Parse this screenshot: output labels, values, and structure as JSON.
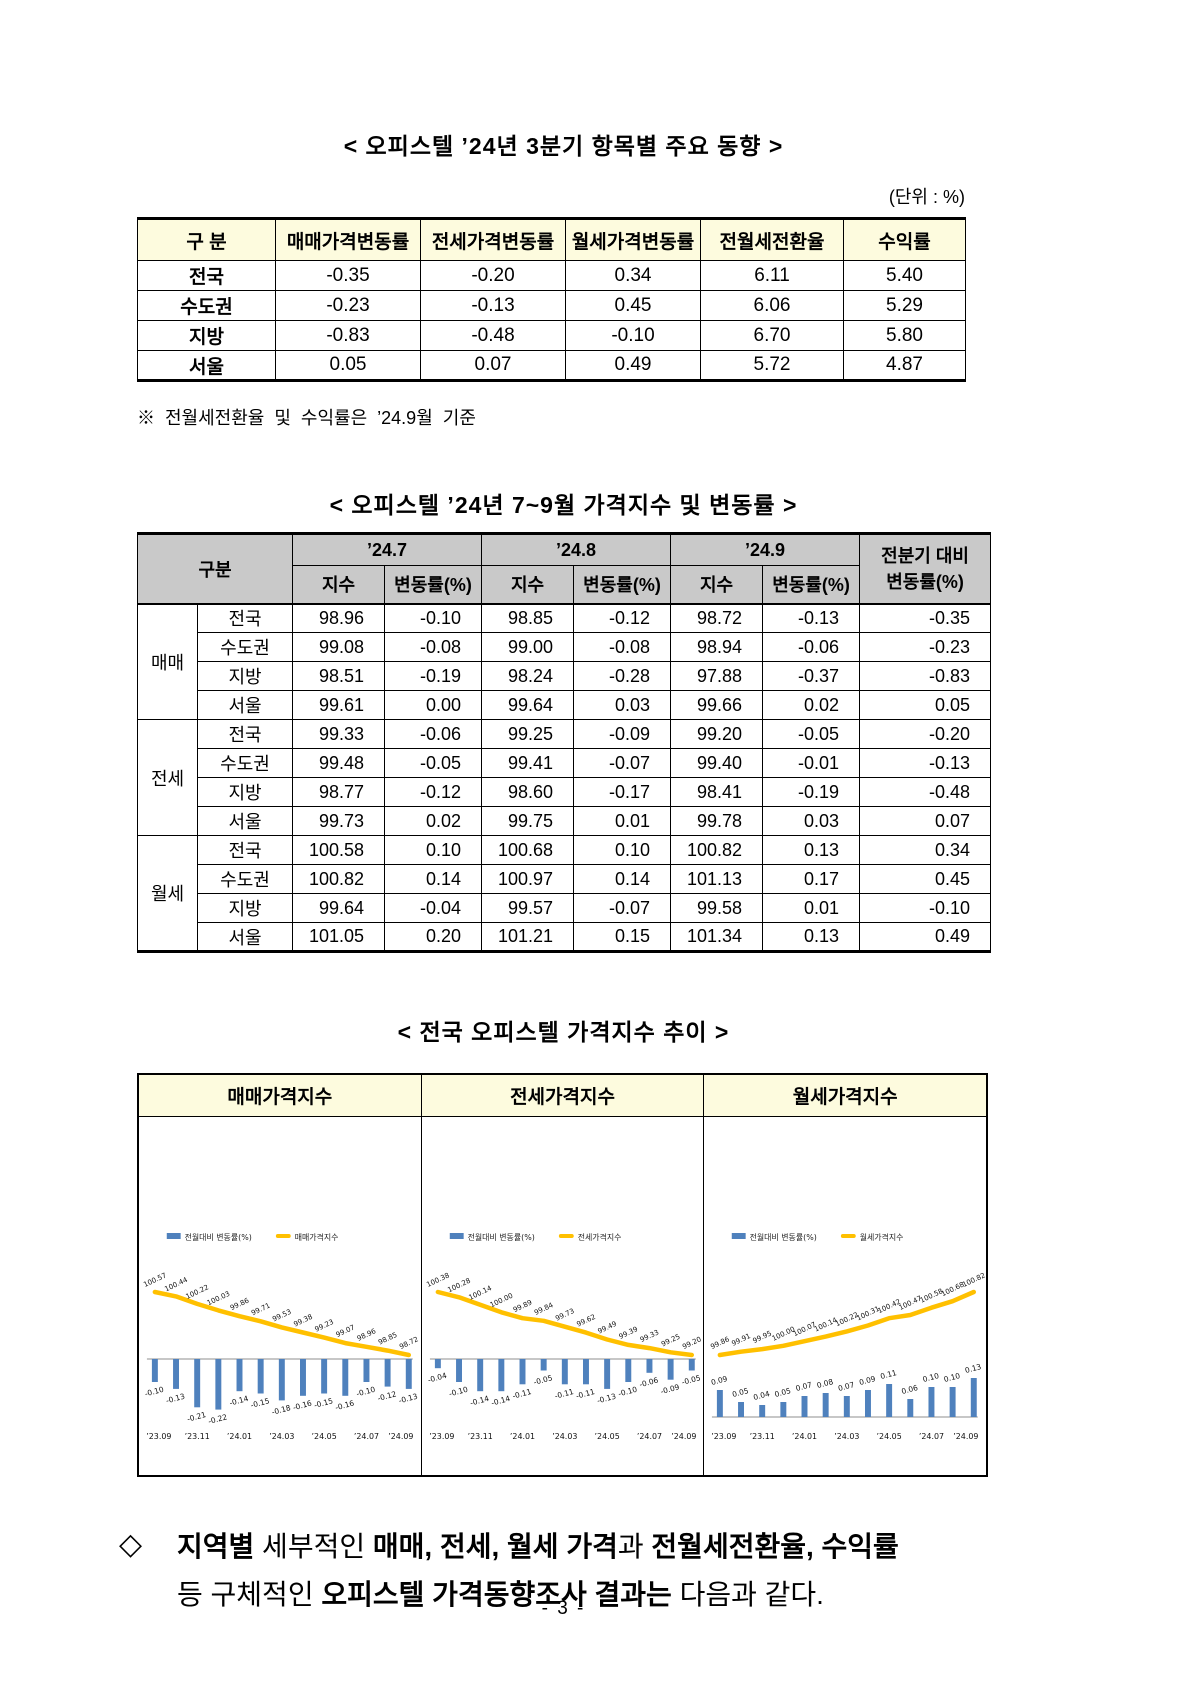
{
  "page": {
    "number": "- 3 -"
  },
  "section1": {
    "title": "< 오피스텔 ’24년 3분기 항목별 주요 동향 >",
    "unit": "(단위 : %)",
    "table": {
      "headers": [
        "구 분",
        "매매가격변동률",
        "전세가격변동률",
        "월세가격변동률",
        "전월세전환율",
        "수익률"
      ],
      "rows": [
        {
          "label": "전국",
          "values": [
            "-0.35",
            "-0.20",
            "0.34",
            "6.11",
            "5.40"
          ]
        },
        {
          "label": "수도권",
          "values": [
            "-0.23",
            "-0.13",
            "0.45",
            "6.06",
            "5.29"
          ]
        },
        {
          "label": "지방",
          "values": [
            "-0.83",
            "-0.48",
            "-0.10",
            "6.70",
            "5.80"
          ]
        },
        {
          "label": "서울",
          "values": [
            "0.05",
            "0.07",
            "0.49",
            "5.72",
            "4.87"
          ]
        }
      ]
    },
    "note": "※ 전월세전환율 및 수익률은 ’24.9월 기준"
  },
  "section2": {
    "title": "< 오피스텔 ’24년 7~9월 가격지수 및 변동률 >",
    "table": {
      "corner_label": "구분",
      "month_headers": [
        "’24.7",
        "’24.8",
        "’24.9"
      ],
      "sub_headers": [
        "지수",
        "변동률(%)"
      ],
      "last_header_line1": "전분기 대비",
      "last_header_line2": "변동률(%)",
      "groups": [
        {
          "label": "매매",
          "rows": [
            {
              "label": "전국",
              "values": [
                "98.96",
                "-0.10",
                "98.85",
                "-0.12",
                "98.72",
                "-0.13",
                "-0.35"
              ]
            },
            {
              "label": "수도권",
              "values": [
                "99.08",
                "-0.08",
                "99.00",
                "-0.08",
                "98.94",
                "-0.06",
                "-0.23"
              ]
            },
            {
              "label": "지방",
              "values": [
                "98.51",
                "-0.19",
                "98.24",
                "-0.28",
                "97.88",
                "-0.37",
                "-0.83"
              ]
            },
            {
              "label": "서울",
              "values": [
                "99.61",
                "0.00",
                "99.64",
                "0.03",
                "99.66",
                "0.02",
                "0.05"
              ]
            }
          ]
        },
        {
          "label": "전세",
          "rows": [
            {
              "label": "전국",
              "values": [
                "99.33",
                "-0.06",
                "99.25",
                "-0.09",
                "99.20",
                "-0.05",
                "-0.20"
              ]
            },
            {
              "label": "수도권",
              "values": [
                "99.48",
                "-0.05",
                "99.41",
                "-0.07",
                "99.40",
                "-0.01",
                "-0.13"
              ]
            },
            {
              "label": "지방",
              "values": [
                "98.77",
                "-0.12",
                "98.60",
                "-0.17",
                "98.41",
                "-0.19",
                "-0.48"
              ]
            },
            {
              "label": "서울",
              "values": [
                "99.73",
                "0.02",
                "99.75",
                "0.01",
                "99.78",
                "0.03",
                "0.07"
              ]
            }
          ]
        },
        {
          "label": "월세",
          "rows": [
            {
              "label": "전국",
              "values": [
                "100.58",
                "0.10",
                "100.68",
                "0.10",
                "100.82",
                "0.13",
                "0.34"
              ]
            },
            {
              "label": "수도권",
              "values": [
                "100.82",
                "0.14",
                "100.97",
                "0.14",
                "101.13",
                "0.17",
                "0.45"
              ]
            },
            {
              "label": "지방",
              "values": [
                "99.64",
                "-0.04",
                "99.57",
                "-0.07",
                "99.58",
                "0.01",
                "-0.10"
              ]
            },
            {
              "label": "서울",
              "values": [
                "101.05",
                "0.20",
                "101.21",
                "0.15",
                "101.34",
                "0.13",
                "0.49"
              ]
            }
          ]
        }
      ]
    }
  },
  "section3": {
    "title": "< 전국 오피스텔 가격지수 추이 >"
  },
  "chart_data": [
    {
      "type": "bar+line",
      "title": "매매가격지수",
      "legend": [
        "전월대비 변동률(%)",
        "매매가격지수"
      ],
      "categories": [
        "’23.09",
        "’23.10",
        "’23.11",
        "’23.12",
        "’24.01",
        "’24.02",
        "’24.03",
        "’24.04",
        "’24.05",
        "’24.06",
        "’24.07",
        "’24.08",
        "’24.09"
      ],
      "x_tick_labels": [
        "’23.09",
        "’23.11",
        "’24.01",
        "’24.03",
        "’24.05",
        "’24.07",
        "’24.09"
      ],
      "series": [
        {
          "name": "매매가격지수",
          "type": "line",
          "values": [
            100.57,
            100.44,
            100.22,
            100.03,
            99.86,
            99.71,
            99.53,
            99.38,
            99.23,
            99.07,
            98.96,
            98.85,
            98.72
          ]
        },
        {
          "name": "전월대비 변동률(%)",
          "type": "bar",
          "values": [
            -0.1,
            -0.13,
            -0.21,
            -0.22,
            -0.14,
            -0.15,
            -0.18,
            -0.16,
            -0.15,
            -0.16,
            -0.1,
            -0.12,
            -0.13
          ]
        }
      ],
      "colors": {
        "bar": "#4f81bd",
        "line": "#ffc000"
      },
      "legend_position": "top-left",
      "grid": false
    },
    {
      "type": "bar+line",
      "title": "전세가격지수",
      "legend": [
        "전월대비 변동률(%)",
        "전세가격지수"
      ],
      "categories": [
        "’23.09",
        "’23.10",
        "’23.11",
        "’23.12",
        "’24.01",
        "’24.02",
        "’24.03",
        "’24.04",
        "’24.05",
        "’24.06",
        "’24.07",
        "’24.08",
        "’24.09"
      ],
      "x_tick_labels": [
        "’23.09",
        "’23.11",
        "’24.01",
        "’24.03",
        "’24.05",
        "’24.07",
        "’24.09"
      ],
      "series": [
        {
          "name": "전세가격지수",
          "type": "line",
          "values": [
            100.38,
            100.28,
            100.14,
            100.0,
            99.89,
            99.84,
            99.73,
            99.62,
            99.49,
            99.39,
            99.33,
            99.25,
            99.2
          ]
        },
        {
          "name": "전월대비 변동률(%)",
          "type": "bar",
          "values": [
            -0.04,
            -0.1,
            -0.14,
            -0.14,
            -0.11,
            -0.05,
            -0.11,
            -0.11,
            -0.13,
            -0.1,
            -0.06,
            -0.09,
            -0.05
          ]
        }
      ],
      "colors": {
        "bar": "#4f81bd",
        "line": "#ffc000"
      },
      "legend_position": "top-left",
      "grid": false
    },
    {
      "type": "bar+line",
      "title": "월세가격지수",
      "legend": [
        "전월대비 변동률(%)",
        "월세가격지수"
      ],
      "categories": [
        "’23.09",
        "’23.10",
        "’23.11",
        "’23.12",
        "’24.01",
        "’24.02",
        "’24.03",
        "’24.04",
        "’24.05",
        "’24.06",
        "’24.07",
        "’24.08",
        "’24.09"
      ],
      "x_tick_labels": [
        "’23.09",
        "’23.11",
        "’24.01",
        "’24.03",
        "’24.05",
        "’24.07",
        "’24.09"
      ],
      "series": [
        {
          "name": "월세가격지수",
          "type": "line",
          "values": [
            99.86,
            99.91,
            99.95,
            100.0,
            100.07,
            100.14,
            100.22,
            100.31,
            100.42,
            100.47,
            100.58,
            100.68,
            100.82
          ]
        },
        {
          "name": "전월대비 변동률(%)",
          "type": "bar",
          "values": [
            0.09,
            0.05,
            0.04,
            0.05,
            0.07,
            0.08,
            0.07,
            0.09,
            0.11,
            0.06,
            0.1,
            0.1,
            0.13
          ]
        }
      ],
      "colors": {
        "bar": "#4f81bd",
        "line": "#ffc000"
      },
      "legend_position": "top-left",
      "grid": false
    }
  ],
  "closing": {
    "bullet": "◇",
    "lines": [
      [
        {
          "t": "지역별",
          "b": 1
        },
        {
          "t": " 세부적인 ",
          "b": 0
        },
        {
          "t": "매매, 전세, 월세 가격",
          "b": 1
        },
        {
          "t": "과 ",
          "b": 0
        },
        {
          "t": "전월세전환율, 수익률",
          "b": 1
        }
      ],
      [
        {
          "t": "등 구체적인 ",
          "b": 0
        },
        {
          "t": "오피스텔 가격동향조사",
          "b": 1
        },
        {
          "t": " ",
          "b": 0
        },
        {
          "t": "결과는",
          "b": 1
        },
        {
          "t": " 다음과 같다.",
          "b": 0
        }
      ]
    ]
  }
}
